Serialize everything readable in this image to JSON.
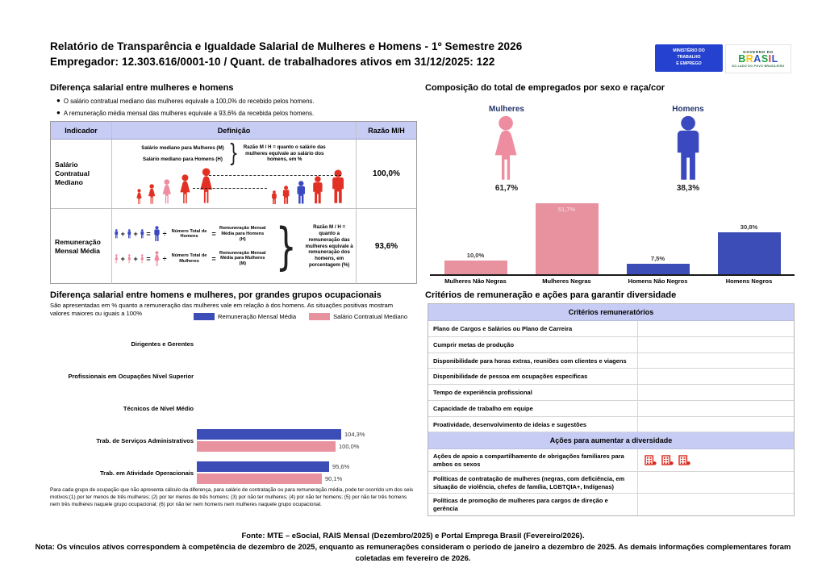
{
  "header": {
    "title_line1": "Relatório de Transparência e Igualdade Salarial de Mulheres e Homens - 1º Semestre 2026",
    "title_line2": "Empregador: 12.303.616/0001-10 / Quant. de trabalhadores ativos em 31/12/2025: 122",
    "logo_mte_line1": "MINISTÉRIO DO",
    "logo_mte_line2": "TRABALHO",
    "logo_mte_line3": "E EMPREGO",
    "logo_gov_top": "GOVERNO DO",
    "logo_gov_brand": "BRASIL",
    "logo_gov_tagline": "DO LADO DO POVO BRASILEIRO"
  },
  "diferenca": {
    "title": "Diferença salarial entre mulheres e homens",
    "bullets": [
      "O salário contratual mediano das mulheres equivale a 100,0% do recebido pelos homens.",
      "A remuneração média mensal das mulheres equivale a 93,6% da recebida pelos homens."
    ],
    "headers": [
      "Indicador",
      "Definição",
      "Razão M/H"
    ],
    "row1": {
      "indicador": "Salário Contratual Mediano",
      "def_line1": "Salário mediano para Mulheres (M)",
      "def_line2": "Salário mediano para Homens (H)",
      "note": "Razão M / H = quanto o salário das mulheres equivale ao salário dos homens, em %",
      "razao": "100,0%"
    },
    "row2": {
      "indicador": "Remuneração Mensal Média",
      "men_divisor": "Número Total de Homens",
      "men_result": "Remuneração Mensal Média para Homens (H)",
      "women_divisor": "Número Total de Mulheres",
      "women_result": "Remuneração Mensal Média para Mulheres (M)",
      "note": "Razão M / H = quanto a remuneração das mulheres equivale à remuneração dos homens, em porcentagem (%)",
      "razao": "93,6%"
    },
    "operators": {
      "plus": "+",
      "equals": "=",
      "divide": "÷"
    }
  },
  "composicao": {
    "title": "Composição do total de empregados por sexo e raça/cor",
    "mulheres_label": "Mulheres",
    "mulheres_pct": "61,7%",
    "homens_label": "Homens",
    "homens_pct": "38,3%"
  },
  "ocupacional": {
    "title": "Diferença salarial entre homens e mulheres, por grandes grupos ocupacionais",
    "subtitle": "São apresentadas em % quanto a remuneração das mulheres vale em relação à dos homens. As situações positivas mostram valores maiores ou iguais a 100%",
    "footnote": "Para cada grupo de ocupação que não apresenta cálculo da diferença, para salário de contratação ou para remuneração média, pode ter ocorrido um dos seis motivos:(1) por ter menos de três mulheres; (2) por ter menos de três homens; (3) por não ter mulheres; (4) por não ter homens; (5) por não ter três homens nem três mulheres naquele grupo ocupacional; (6) por não ter nem homens nem mulheres naquele grupo ocupacional."
  },
  "criterios": {
    "title": "Critérios de remuneração e ações para garantir diversidade",
    "header1": "Critérios remuneratórios",
    "rows1": [
      "Plano de Cargos e Salários ou Plano de Carreira",
      "Cumprir metas de produção",
      "Disponibilidade para horas extras, reuniões com clientes e viagens",
      "Disponibilidade de pessoa em ocupações específicas",
      "Tempo de experiência profissional",
      "Capacidade de trabalho em equipe",
      "Proatividade, desenvolvimento de ideias e sugestões"
    ],
    "header2": "Ações para aumentar a diversidade",
    "rows2": [
      {
        "label": "Ações de apoio a compartilhamento de obrigações familiares para ambos os sexos",
        "icon_count": 3
      },
      {
        "label": "Políticas de contratação de mulheres (negras, com deficiência, em situação de violência, chefes de família, LGBTQIA+, Indígenas)",
        "icon_count": 0
      },
      {
        "label": "Políticas de promoção de mulheres para cargos de direção e gerência",
        "icon_count": 0
      }
    ]
  },
  "footer": {
    "fonte": "Fonte: MTE – eSocial, RAIS Mensal (Dezembro/2025) e Portal Emprega Brasil (Fevereiro/2026).",
    "nota": "Nota: Os vínculos ativos correspondem à competência de dezembro de 2025, enquanto as remunerações consideram o período de janeiro a dezembro de 2025. As demais informações complementares foram coletadas em fevereiro de 2026."
  },
  "colors": {
    "pink_bar": "#E8919F",
    "blue_bar": "#3D4DB7",
    "red_icon": "#E23124",
    "pink_icon": "#EE8CA0",
    "blue_icon": "#3A49C0",
    "lavender_header": "#C7CCF4",
    "building_red": "#D8281C"
  },
  "icons": {
    "woman-icon": "female person pictogram (css/svg shape)",
    "man-icon": "male person pictogram (css/svg shape)",
    "building-icon": "small red office building glyph",
    "brace-glyph": "}"
  },
  "chart_data": [
    {
      "type": "bar",
      "title": "Composição do total de empregados por sexo e raça/cor",
      "categories": [
        "Mulheres Não Negras",
        "Mulheres Negras",
        "Homens Não Negros",
        "Homens Negros"
      ],
      "values": [
        10.0,
        51.7,
        7.5,
        30.8
      ],
      "labels": [
        "10,0%",
        "51,7%",
        "7,5%",
        "30,8%"
      ],
      "colors": [
        "#E8919F",
        "#E8919F",
        "#3D4DB7",
        "#3D4DB7"
      ],
      "xlabel": "",
      "ylabel": "",
      "ylim": [
        0,
        55
      ],
      "grid": false,
      "legend_position": "none"
    },
    {
      "type": "bar",
      "orientation": "horizontal",
      "title": "Diferença salarial entre homens e mulheres, por grandes grupos ocupacionais",
      "categories": [
        "Dirigentes e Gerentes",
        "Profissionais em Ocupações Nível Superior",
        "Técnicos de Nível Médio",
        "Trab. de Serviços Administrativos",
        "Trab. em Atividade Operacionais"
      ],
      "series": [
        {
          "name": "Remuneração Mensal Média",
          "color": "#3D4DB7",
          "values": [
            null,
            null,
            null,
            104.3,
            95.6
          ],
          "labels": [
            "",
            "",
            "",
            "104,3%",
            "95,6%"
          ]
        },
        {
          "name": "Salário Contratual Mediano",
          "color": "#E8919F",
          "values": [
            null,
            null,
            null,
            100.0,
            90.1
          ],
          "labels": [
            "",
            "",
            "",
            "100,0%",
            "90,1%"
          ]
        }
      ],
      "xlim": [
        0,
        120
      ],
      "grid": false,
      "legend_position": "top"
    }
  ]
}
